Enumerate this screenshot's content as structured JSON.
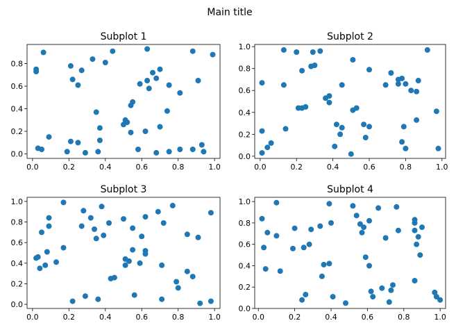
{
  "figure": {
    "suptitle": "Main title"
  },
  "chart_data": [
    {
      "type": "scatter",
      "title": "Subplot 1",
      "xlabel": "",
      "ylabel": "",
      "xlim": [
        -0.03,
        1.03
      ],
      "ylim": [
        -0.04,
        0.97
      ],
      "xticks": [
        "0.0",
        "0.2",
        "0.4",
        "0.6",
        "0.8",
        "1.0"
      ],
      "yticks": [
        "0.0",
        "0.2",
        "0.4",
        "0.6",
        "0.8"
      ],
      "color": "#1f77b4",
      "points": [
        [
          0.03,
          0.05
        ],
        [
          0.05,
          0.04
        ],
        [
          0.02,
          0.73
        ],
        [
          0.02,
          0.75
        ],
        [
          0.06,
          0.9
        ],
        [
          0.09,
          0.15
        ],
        [
          0.19,
          0.02
        ],
        [
          0.21,
          0.11
        ],
        [
          0.21,
          0.78
        ],
        [
          0.22,
          0.66
        ],
        [
          0.25,
          0.1
        ],
        [
          0.25,
          0.61
        ],
        [
          0.27,
          0.74
        ],
        [
          0.29,
          0.01
        ],
        [
          0.33,
          0.84
        ],
        [
          0.35,
          0.37
        ],
        [
          0.36,
          0.02
        ],
        [
          0.37,
          0.12
        ],
        [
          0.37,
          0.23
        ],
        [
          0.4,
          0.81
        ],
        [
          0.44,
          0.91
        ],
        [
          0.5,
          0.26
        ],
        [
          0.51,
          0.3
        ],
        [
          0.52,
          0.28
        ],
        [
          0.54,
          0.19
        ],
        [
          0.54,
          0.43
        ],
        [
          0.55,
          0.46
        ],
        [
          0.58,
          0.04
        ],
        [
          0.59,
          0.62
        ],
        [
          0.62,
          0.2
        ],
        [
          0.63,
          0.65
        ],
        [
          0.63,
          0.93
        ],
        [
          0.64,
          0.58
        ],
        [
          0.66,
          0.72
        ],
        [
          0.68,
          0.01
        ],
        [
          0.68,
          0.67
        ],
        [
          0.7,
          0.24
        ],
        [
          0.7,
          0.75
        ],
        [
          0.74,
          0.38
        ],
        [
          0.75,
          0.02
        ],
        [
          0.75,
          0.61
        ],
        [
          0.81,
          0.04
        ],
        [
          0.81,
          0.54
        ],
        [
          0.88,
          0.04
        ],
        [
          0.88,
          0.91
        ],
        [
          0.91,
          0.65
        ],
        [
          0.93,
          0.08
        ],
        [
          0.94,
          0.02
        ],
        [
          0.99,
          0.88
        ]
      ]
    },
    {
      "type": "scatter",
      "title": "Subplot 2",
      "xlabel": "",
      "ylabel": "",
      "xlim": [
        -0.03,
        1.02
      ],
      "ylim": [
        -0.02,
        1.02
      ],
      "xticks": [
        "0.0",
        "0.2",
        "0.4",
        "0.6",
        "0.8",
        "1.0"
      ],
      "yticks": [
        "0.0",
        "0.2",
        "0.4",
        "0.6",
        "0.8",
        "1.0"
      ],
      "color": "#1f77b4",
      "points": [
        [
          0.01,
          0.03
        ],
        [
          0.01,
          0.23
        ],
        [
          0.01,
          0.67
        ],
        [
          0.04,
          0.08
        ],
        [
          0.06,
          0.12
        ],
        [
          0.13,
          0.97
        ],
        [
          0.13,
          0.65
        ],
        [
          0.14,
          0.25
        ],
        [
          0.2,
          0.95
        ],
        [
          0.21,
          0.44
        ],
        [
          0.23,
          0.44
        ],
        [
          0.23,
          0.78
        ],
        [
          0.25,
          0.45
        ],
        [
          0.28,
          0.82
        ],
        [
          0.29,
          0.95
        ],
        [
          0.3,
          0.83
        ],
        [
          0.33,
          0.96
        ],
        [
          0.36,
          0.53
        ],
        [
          0.38,
          0.49
        ],
        [
          0.38,
          0.55
        ],
        [
          0.41,
          0.09
        ],
        [
          0.42,
          0.29
        ],
        [
          0.44,
          0.2
        ],
        [
          0.45,
          0.26
        ],
        [
          0.45,
          0.65
        ],
        [
          0.5,
          0.02
        ],
        [
          0.51,
          0.42
        ],
        [
          0.51,
          0.88
        ],
        [
          0.53,
          0.44
        ],
        [
          0.57,
          0.29
        ],
        [
          0.58,
          0.17
        ],
        [
          0.6,
          0.79
        ],
        [
          0.6,
          0.27
        ],
        [
          0.69,
          0.65
        ],
        [
          0.72,
          0.76
        ],
        [
          0.76,
          0.66
        ],
        [
          0.76,
          0.7
        ],
        [
          0.78,
          0.13
        ],
        [
          0.78,
          0.71
        ],
        [
          0.79,
          0.27
        ],
        [
          0.8,
          0.66
        ],
        [
          0.8,
          0.07
        ],
        [
          0.83,
          0.6
        ],
        [
          0.86,
          0.59
        ],
        [
          0.86,
          0.33
        ],
        [
          0.87,
          0.69
        ],
        [
          0.92,
          0.97
        ],
        [
          0.97,
          0.41
        ],
        [
          0.98,
          0.07
        ]
      ]
    },
    {
      "type": "scatter",
      "title": "Subplot 3",
      "xlabel": "",
      "ylabel": "",
      "xlim": [
        -0.03,
        1.03
      ],
      "ylim": [
        -0.04,
        1.04
      ],
      "xticks": [
        "0.0",
        "0.2",
        "0.4",
        "0.6",
        "0.8",
        "1.0"
      ],
      "yticks": [
        "0.0",
        "0.2",
        "0.4",
        "0.6",
        "0.8",
        "1.0"
      ],
      "color": "#1f77b4",
      "points": [
        [
          0.02,
          0.45
        ],
        [
          0.03,
          0.46
        ],
        [
          0.04,
          0.35
        ],
        [
          0.05,
          0.7
        ],
        [
          0.07,
          0.38
        ],
        [
          0.08,
          0.51
        ],
        [
          0.09,
          0.76
        ],
        [
          0.09,
          0.84
        ],
        [
          0.13,
          0.41
        ],
        [
          0.17,
          0.55
        ],
        [
          0.17,
          0.99
        ],
        [
          0.22,
          0.03
        ],
        [
          0.27,
          0.76
        ],
        [
          0.28,
          0.91
        ],
        [
          0.29,
          0.08
        ],
        [
          0.32,
          0.84
        ],
        [
          0.34,
          0.73
        ],
        [
          0.35,
          0.64
        ],
        [
          0.36,
          0.05
        ],
        [
          0.38,
          0.95
        ],
        [
          0.39,
          0.67
        ],
        [
          0.42,
          0.79
        ],
        [
          0.43,
          0.25
        ],
        [
          0.45,
          0.26
        ],
        [
          0.5,
          0.83
        ],
        [
          0.51,
          0.38
        ],
        [
          0.51,
          0.44
        ],
        [
          0.53,
          0.42
        ],
        [
          0.55,
          0.53
        ],
        [
          0.55,
          0.74
        ],
        [
          0.56,
          0.09
        ],
        [
          0.59,
          0.4
        ],
        [
          0.6,
          0.66
        ],
        [
          0.62,
          0.52
        ],
        [
          0.62,
          0.49
        ],
        [
          0.62,
          0.85
        ],
        [
          0.69,
          0.9
        ],
        [
          0.71,
          0.05
        ],
        [
          0.71,
          0.38
        ],
        [
          0.72,
          0.79
        ],
        [
          0.77,
          0.96
        ],
        [
          0.79,
          0.22
        ],
        [
          0.8,
          0.16
        ],
        [
          0.85,
          0.32
        ],
        [
          0.85,
          0.68
        ],
        [
          0.88,
          0.27
        ],
        [
          0.91,
          0.65
        ],
        [
          0.92,
          0.01
        ],
        [
          0.98,
          0.89
        ],
        [
          0.98,
          0.03
        ]
      ]
    },
    {
      "type": "scatter",
      "title": "Subplot 4",
      "xlabel": "",
      "ylabel": "",
      "xlim": [
        -0.02,
        1.03
      ],
      "ylim": [
        0.0,
        1.04
      ],
      "xticks": [
        "0.0",
        "0.2",
        "0.4",
        "0.6",
        "0.8",
        "1.0"
      ],
      "yticks": [
        "0.0",
        "0.2",
        "0.4",
        "0.6",
        "0.8",
        "1.0"
      ],
      "color": "#1f77b4",
      "points": [
        [
          0.02,
          0.84
        ],
        [
          0.03,
          0.57
        ],
        [
          0.04,
          0.37
        ],
        [
          0.05,
          0.71
        ],
        [
          0.1,
          0.99
        ],
        [
          0.1,
          0.68
        ],
        [
          0.12,
          0.35
        ],
        [
          0.19,
          0.56
        ],
        [
          0.2,
          0.75
        ],
        [
          0.24,
          0.08
        ],
        [
          0.25,
          0.57
        ],
        [
          0.26,
          0.13
        ],
        [
          0.28,
          0.6
        ],
        [
          0.29,
          0.74
        ],
        [
          0.34,
          0.77
        ],
        [
          0.35,
          0.3
        ],
        [
          0.36,
          0.41
        ],
        [
          0.39,
          0.42
        ],
        [
          0.39,
          0.98
        ],
        [
          0.4,
          0.8
        ],
        [
          0.41,
          0.11
        ],
        [
          0.48,
          0.05
        ],
        [
          0.52,
          0.96
        ],
        [
          0.54,
          0.87
        ],
        [
          0.56,
          0.79
        ],
        [
          0.57,
          0.71
        ],
        [
          0.58,
          0.76
        ],
        [
          0.59,
          0.48
        ],
        [
          0.61,
          0.82
        ],
        [
          0.61,
          0.4
        ],
        [
          0.62,
          0.16
        ],
        [
          0.63,
          0.11
        ],
        [
          0.66,
          0.94
        ],
        [
          0.68,
          0.19
        ],
        [
          0.7,
          0.66
        ],
        [
          0.72,
          0.06
        ],
        [
          0.73,
          0.17
        ],
        [
          0.74,
          0.22
        ],
        [
          0.76,
          0.95
        ],
        [
          0.77,
          0.73
        ],
        [
          0.86,
          0.8
        ],
        [
          0.86,
          0.83
        ],
        [
          0.86,
          0.73
        ],
        [
          0.86,
          0.26
        ],
        [
          0.87,
          0.6
        ],
        [
          0.88,
          0.67
        ],
        [
          0.89,
          0.5
        ],
        [
          0.9,
          0.76
        ],
        [
          0.97,
          0.15
        ],
        [
          0.98,
          0.11
        ],
        [
          1.0,
          0.08
        ]
      ]
    }
  ]
}
